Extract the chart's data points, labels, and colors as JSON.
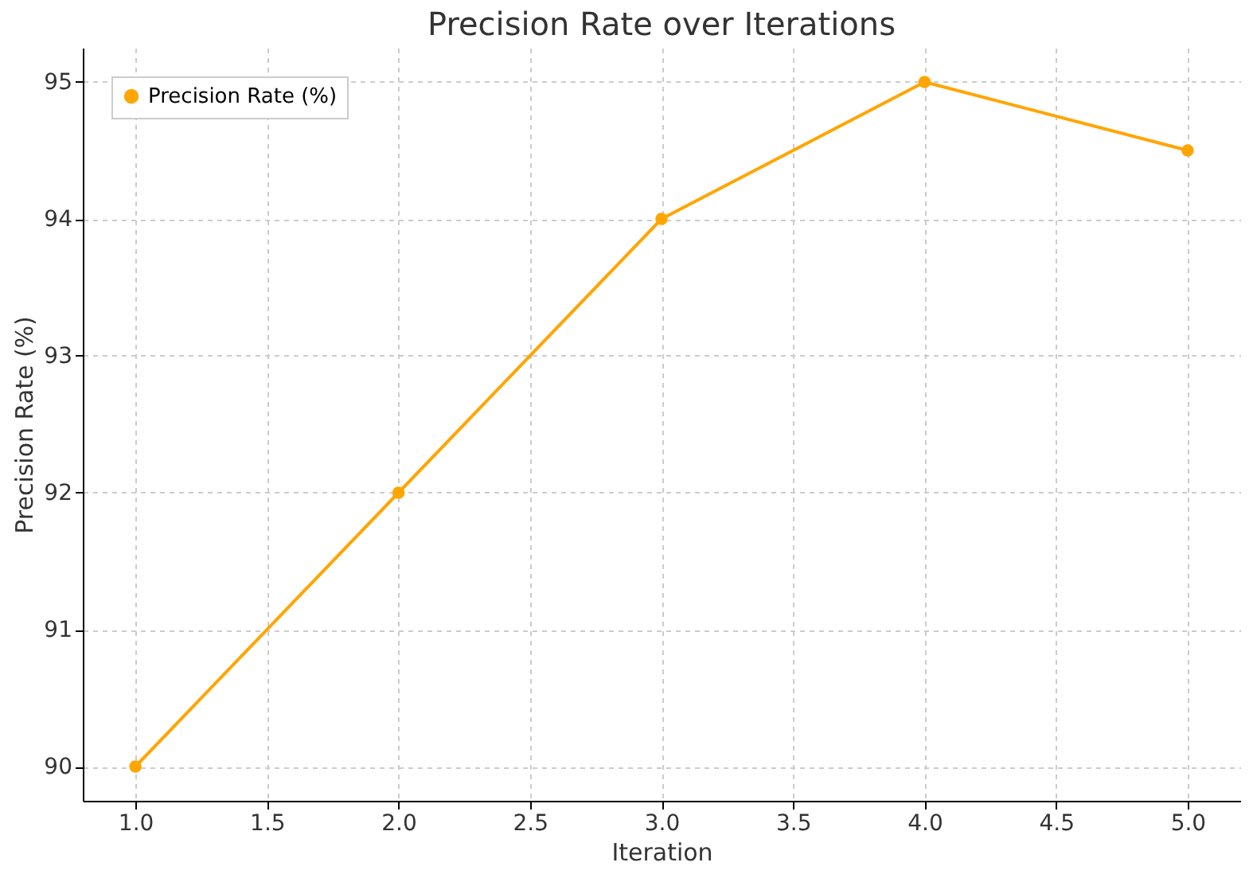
{
  "chart_data": {
    "type": "line",
    "title": "Precision Rate over Iterations",
    "xlabel": "Iteration",
    "ylabel": "Precision Rate (%)",
    "x": [
      1,
      2,
      3,
      4,
      5
    ],
    "series": [
      {
        "name": "Precision Rate (%)",
        "color": "#ffa500",
        "values": [
          90,
          92,
          94,
          95,
          94.5
        ]
      }
    ],
    "xlim": [
      0.8,
      5.2
    ],
    "ylim": [
      89.75,
      95.25
    ],
    "xticks": [
      {
        "value": 1,
        "label": "1.0"
      },
      {
        "value": 1.5,
        "label": "1.5"
      },
      {
        "value": 2,
        "label": "2.0"
      },
      {
        "value": 2.5,
        "label": "2.5"
      },
      {
        "value": 3,
        "label": "3.0"
      },
      {
        "value": 3.5,
        "label": "3.5"
      },
      {
        "value": 4,
        "label": "4.0"
      },
      {
        "value": 4.5,
        "label": "4.5"
      },
      {
        "value": 5,
        "label": "5.0"
      }
    ],
    "yticks": [
      90,
      91,
      92,
      93,
      94,
      95
    ],
    "grid": true,
    "legend": "top left",
    "marker": "circle",
    "line_style": "solid"
  }
}
